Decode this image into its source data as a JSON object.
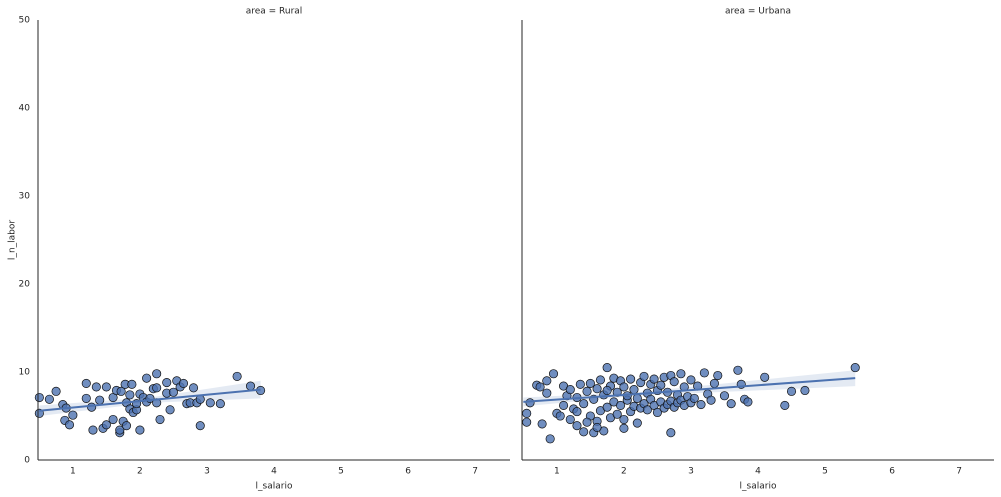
{
  "chart_data": [
    {
      "type": "scatter",
      "title": "area = Rural",
      "x_label": "l_salario",
      "y_label": "l_n_labor",
      "color": "#4c72b0",
      "xlim": [
        0.48,
        7.52
      ],
      "xticks": [
        1,
        2,
        3,
        4,
        5,
        6,
        7
      ],
      "ylim": [
        0,
        50
      ],
      "yticks": [
        0,
        10,
        20,
        30,
        40,
        50
      ],
      "points": {
        "x": [
          0.5,
          0.5,
          0.65,
          0.75,
          0.85,
          0.88,
          0.9,
          0.95,
          1.0,
          1.2,
          1.2,
          1.28,
          1.3,
          1.35,
          1.4,
          1.45,
          1.5,
          1.5,
          1.6,
          1.6,
          1.65,
          1.7,
          1.7,
          1.72,
          1.75,
          1.78,
          1.8,
          1.8,
          1.85,
          1.85,
          1.88,
          1.9,
          1.95,
          1.95,
          2.0,
          2.0,
          2.05,
          2.1,
          2.1,
          2.15,
          2.2,
          2.25,
          2.25,
          2.25,
          2.3,
          2.4,
          2.4,
          2.45,
          2.5,
          2.55,
          2.6,
          2.65,
          2.7,
          2.75,
          2.8,
          2.85,
          2.9,
          2.9,
          3.05,
          3.2,
          3.45,
          3.65,
          3.8
        ],
        "y": [
          7.1,
          5.3,
          6.9,
          7.8,
          6.3,
          4.5,
          5.9,
          4.0,
          5.1,
          8.7,
          7.0,
          6.0,
          3.4,
          8.3,
          6.8,
          3.6,
          8.3,
          4.0,
          7.1,
          4.6,
          7.9,
          3.1,
          3.4,
          7.8,
          4.4,
          8.6,
          3.9,
          6.5,
          7.4,
          5.8,
          8.6,
          5.4,
          5.7,
          6.4,
          3.4,
          7.5,
          7.1,
          9.3,
          6.6,
          7.0,
          8.1,
          6.5,
          9.8,
          8.2,
          4.6,
          7.6,
          8.8,
          5.7,
          7.7,
          9.0,
          8.3,
          8.7,
          6.4,
          6.5,
          8.2,
          6.5,
          3.9,
          6.9,
          6.5,
          6.4,
          9.5,
          8.4,
          7.9
        ]
      },
      "fit": {
        "x": [
          0.5,
          2.15,
          3.8
        ],
        "y": [
          5.6,
          6.8,
          8.0
        ],
        "lower": [
          5.0,
          6.5,
          7.0
        ],
        "upper": [
          6.2,
          7.1,
          9.0
        ]
      }
    },
    {
      "type": "scatter",
      "title": "area = Urbana",
      "x_label": "l_salario",
      "color": "#4c72b0",
      "xlim": [
        0.48,
        7.52
      ],
      "xticks": [
        1,
        2,
        3,
        4,
        5,
        6,
        7
      ],
      "ylim": [
        0,
        50
      ],
      "points": {
        "x": [
          0.55,
          0.55,
          0.6,
          0.7,
          0.75,
          0.78,
          0.85,
          0.85,
          0.9,
          0.95,
          1.0,
          1.05,
          1.1,
          1.1,
          1.15,
          1.2,
          1.2,
          1.25,
          1.3,
          1.3,
          1.35,
          1.4,
          1.4,
          1.45,
          1.5,
          1.5,
          1.55,
          1.55,
          1.6,
          1.6,
          1.65,
          1.65,
          1.7,
          1.7,
          1.75,
          1.75,
          1.8,
          1.8,
          1.85,
          1.85,
          1.9,
          1.9,
          1.95,
          1.95,
          2.0,
          2.0,
          2.05,
          2.05,
          2.1,
          2.1,
          2.15,
          2.15,
          2.2,
          2.2,
          2.25,
          2.25,
          2.3,
          2.3,
          2.35,
          2.35,
          2.4,
          2.4,
          2.45,
          2.45,
          2.5,
          2.5,
          2.55,
          2.55,
          2.6,
          2.6,
          2.65,
          2.65,
          2.7,
          2.7,
          2.75,
          2.75,
          2.8,
          2.8,
          2.85,
          2.85,
          2.9,
          2.9,
          2.95,
          3.0,
          3.0,
          3.05,
          3.1,
          3.15,
          3.2,
          3.25,
          3.3,
          3.35,
          3.4,
          3.5,
          3.6,
          3.7,
          3.75,
          3.8,
          3.85,
          4.1,
          4.4,
          4.5,
          4.7,
          5.45,
          1.75,
          2.7,
          1.45,
          1.6,
          1.3,
          2.0
        ],
        "y": [
          5.3,
          4.3,
          6.5,
          8.5,
          8.3,
          4.1,
          7.6,
          9.0,
          2.4,
          9.8,
          5.3,
          5.0,
          8.4,
          6.2,
          7.3,
          4.6,
          8.0,
          5.8,
          3.9,
          7.1,
          8.6,
          3.2,
          6.4,
          7.8,
          5.0,
          8.7,
          3.1,
          6.9,
          4.4,
          8.1,
          5.6,
          9.1,
          3.3,
          7.4,
          6.0,
          10.5,
          4.8,
          8.4,
          6.6,
          9.3,
          5.2,
          7.7,
          6.2,
          9.0,
          4.6,
          8.3,
          6.8,
          7.3,
          5.5,
          9.2,
          6.1,
          8.0,
          4.2,
          7.0,
          5.9,
          8.8,
          6.4,
          9.5,
          5.7,
          7.6,
          6.9,
          8.6,
          6.2,
          9.2,
          5.4,
          7.9,
          6.6,
          8.5,
          5.9,
          9.4,
          6.3,
          7.7,
          6.7,
          9.6,
          6.0,
          8.9,
          6.5,
          7.4,
          6.8,
          9.8,
          6.2,
          8.3,
          7.2,
          6.5,
          9.1,
          7.0,
          8.4,
          6.3,
          9.9,
          7.5,
          6.8,
          8.7,
          9.6,
          7.3,
          6.4,
          10.2,
          8.6,
          6.9,
          6.6,
          9.4,
          6.2,
          7.8,
          7.9,
          10.5,
          7.9,
          3.1,
          4.3,
          3.7,
          5.5,
          3.6
        ]
      },
      "fit": {
        "x": [
          0.5,
          2.2,
          5.45
        ],
        "y": [
          6.6,
          7.5,
          9.3
        ],
        "lower": [
          6.1,
          7.3,
          8.4
        ],
        "upper": [
          7.1,
          7.7,
          10.2
        ]
      }
    }
  ]
}
